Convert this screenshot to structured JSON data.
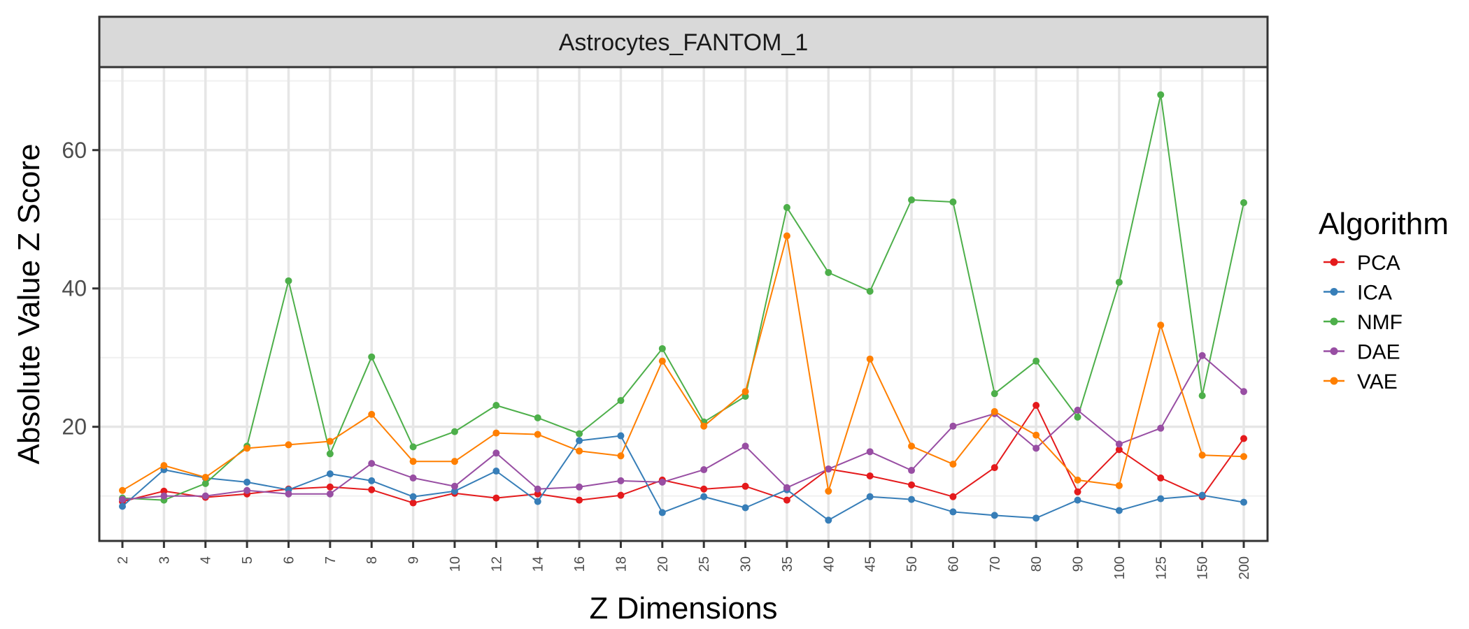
{
  "chart_data": {
    "type": "line",
    "title": "",
    "panel_title": "Astrocytes_FANTOM_1",
    "xlabel": "Z Dimensions",
    "ylabel": "Absolute Value Z Score",
    "x": [
      "2",
      "3",
      "4",
      "5",
      "6",
      "7",
      "8",
      "9",
      "10",
      "12",
      "14",
      "16",
      "18",
      "20",
      "25",
      "30",
      "35",
      "40",
      "45",
      "50",
      "60",
      "70",
      "80",
      "90",
      "100",
      "125",
      "150",
      "200"
    ],
    "ylim": [
      3.5,
      72
    ],
    "yticks": [
      20,
      40,
      60
    ],
    "grid": true,
    "legend": {
      "title": "Algorithm",
      "position": "right"
    },
    "series": [
      {
        "name": "PCA",
        "color": "#E41A1C",
        "values": [
          9.2,
          10.7,
          9.8,
          10.3,
          11.0,
          11.3,
          10.9,
          9.0,
          10.4,
          9.7,
          10.3,
          9.4,
          10.1,
          12.3,
          11.0,
          11.4,
          9.4,
          13.9,
          12.9,
          11.6,
          9.9,
          14.1,
          23.1,
          10.6,
          16.7,
          12.6,
          9.9,
          18.3
        ]
      },
      {
        "name": "ICA",
        "color": "#377EB8",
        "values": [
          8.5,
          13.8,
          12.6,
          12.0,
          10.9,
          13.2,
          12.2,
          9.9,
          10.7,
          13.6,
          9.2,
          18.0,
          18.7,
          7.6,
          9.9,
          8.3,
          10.9,
          6.5,
          9.9,
          9.5,
          7.7,
          7.2,
          6.8,
          9.4,
          7.9,
          9.6,
          10.1,
          9.1
        ]
      },
      {
        "name": "NMF",
        "color": "#4DAF4A",
        "values": [
          9.7,
          9.4,
          11.8,
          17.2,
          41.1,
          16.1,
          30.1,
          17.1,
          19.3,
          23.1,
          21.3,
          19.0,
          23.8,
          31.3,
          20.7,
          24.4,
          51.7,
          42.3,
          39.6,
          52.8,
          52.5,
          24.8,
          29.5,
          21.4,
          40.9,
          68.0,
          24.5,
          52.4
        ]
      },
      {
        "name": "DAE",
        "color": "#984EA3",
        "values": [
          9.5,
          10.0,
          10.0,
          10.8,
          10.3,
          10.3,
          14.7,
          12.6,
          11.4,
          16.2,
          11.0,
          11.3,
          12.2,
          12.0,
          13.8,
          17.2,
          11.2,
          13.9,
          16.4,
          13.7,
          20.1,
          21.9,
          16.9,
          22.4,
          17.5,
          19.8,
          30.3,
          25.1
        ]
      },
      {
        "name": "VAE",
        "color": "#FF7F00",
        "values": [
          10.8,
          14.4,
          12.7,
          16.9,
          17.4,
          17.9,
          21.8,
          15.0,
          15.0,
          19.1,
          18.9,
          16.5,
          15.8,
          29.5,
          20.1,
          25.1,
          47.6,
          10.7,
          29.8,
          17.2,
          14.6,
          22.2,
          18.8,
          12.3,
          11.5,
          34.7,
          15.9,
          15.7
        ]
      }
    ]
  }
}
